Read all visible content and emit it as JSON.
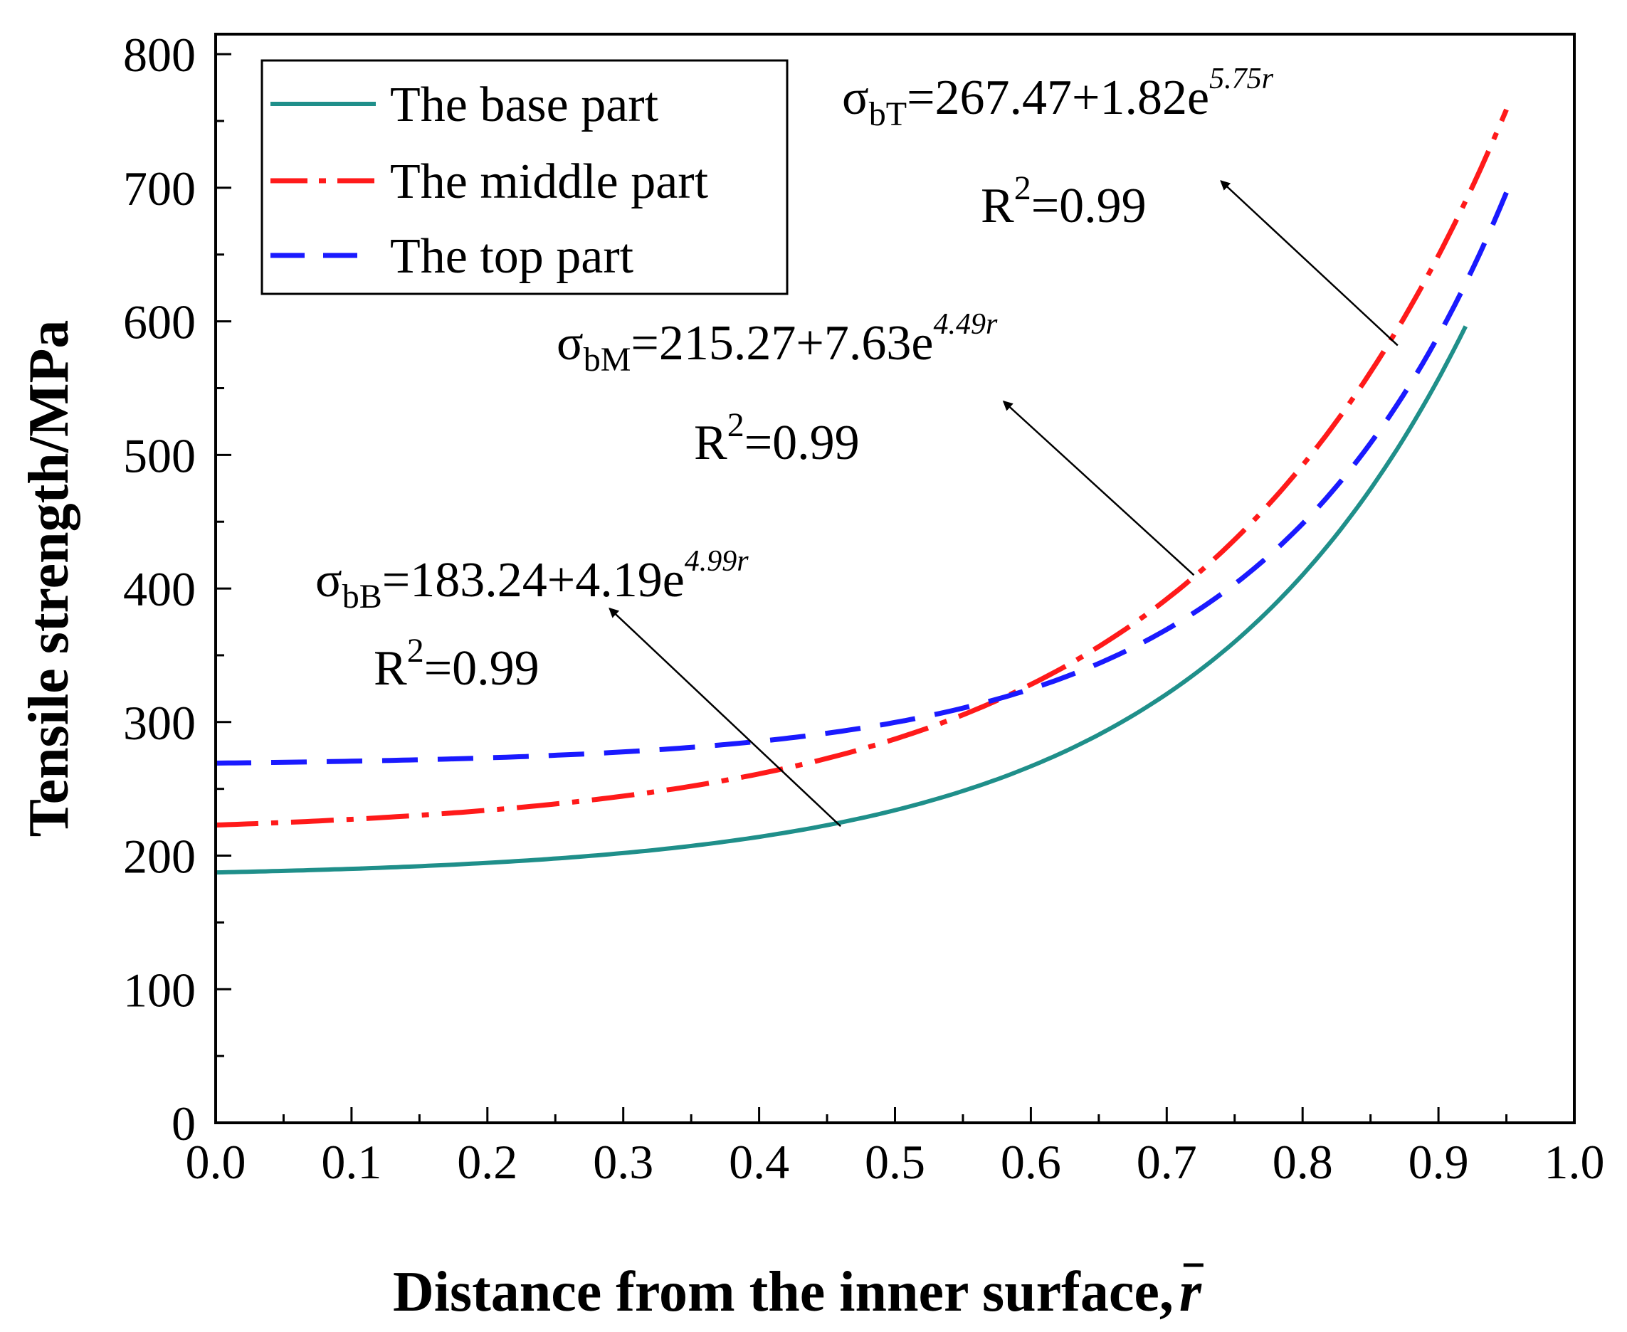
{
  "chart_data": {
    "type": "line",
    "xlabel": "Distance from the inner surface,",
    "xlabel_symbol": "r",
    "ylabel": "Tensile strength/MPa",
    "xlim": [
      0.0,
      1.0
    ],
    "ylim": [
      0,
      850
    ],
    "x_ticks": [
      0.0,
      0.1,
      0.2,
      0.3,
      0.4,
      0.5,
      0.6,
      0.7,
      0.8,
      0.9,
      1.0
    ],
    "x_tick_labels": [
      "0.0",
      "0.1",
      "0.2",
      "0.3",
      "0.4",
      "0.5",
      "0.6",
      "0.7",
      "0.8",
      "0.9",
      "1.0"
    ],
    "y_ticks": [
      0,
      100,
      200,
      300,
      400,
      500,
      600,
      700,
      800
    ],
    "y_tick_labels": [
      "0",
      "100",
      "200",
      "300",
      "400",
      "500",
      "600",
      "700",
      "800"
    ],
    "grid": false,
    "legend_position": "top-left",
    "series": [
      {
        "key": "base",
        "name": "The base part",
        "color": "#1f8f8a",
        "style": "solid",
        "a": 183.24,
        "b": 4.19,
        "c": 4.99,
        "x_end": 0.92
      },
      {
        "key": "middle",
        "name": "The middle part",
        "color": "#ff1a1a",
        "style": "dashdot",
        "a": 215.27,
        "b": 7.63,
        "c": 4.49,
        "x_end": 0.95
      },
      {
        "key": "top",
        "name": "The top part",
        "color": "#1a1aff",
        "style": "dash",
        "a": 267.47,
        "b": 1.82,
        "c": 5.75,
        "x_end": 0.95
      }
    ],
    "annotations": [
      {
        "key": "top",
        "symbol": "σ",
        "subscript": "bT",
        "formula": "=267.47+1.82e",
        "exponent": "5.75",
        "exponent_var": "r",
        "r2": "R",
        "r2_sup": "2",
        "r2_value": "=0.99",
        "arrow_from": [
          0.87,
          582
        ],
        "arrow_to": [
          0.74,
          705
        ]
      },
      {
        "key": "middle",
        "symbol": "σ",
        "subscript": "bM",
        "formula": "=215.27+7.63e",
        "exponent": "4.49",
        "exponent_var": "r",
        "r2": "R",
        "r2_sup": "2",
        "r2_value": "=0.99",
        "arrow_from": [
          0.72,
          410
        ],
        "arrow_to": [
          0.58,
          540
        ]
      },
      {
        "key": "base",
        "symbol": "σ",
        "subscript": "bB",
        "formula": "=183.24+4.19e",
        "exponent": "4.99",
        "exponent_var": "r",
        "r2": "R",
        "r2_sup": "2",
        "r2_value": "=0.99",
        "arrow_from": [
          0.46,
          222
        ],
        "arrow_to": [
          0.29,
          385
        ]
      }
    ]
  }
}
